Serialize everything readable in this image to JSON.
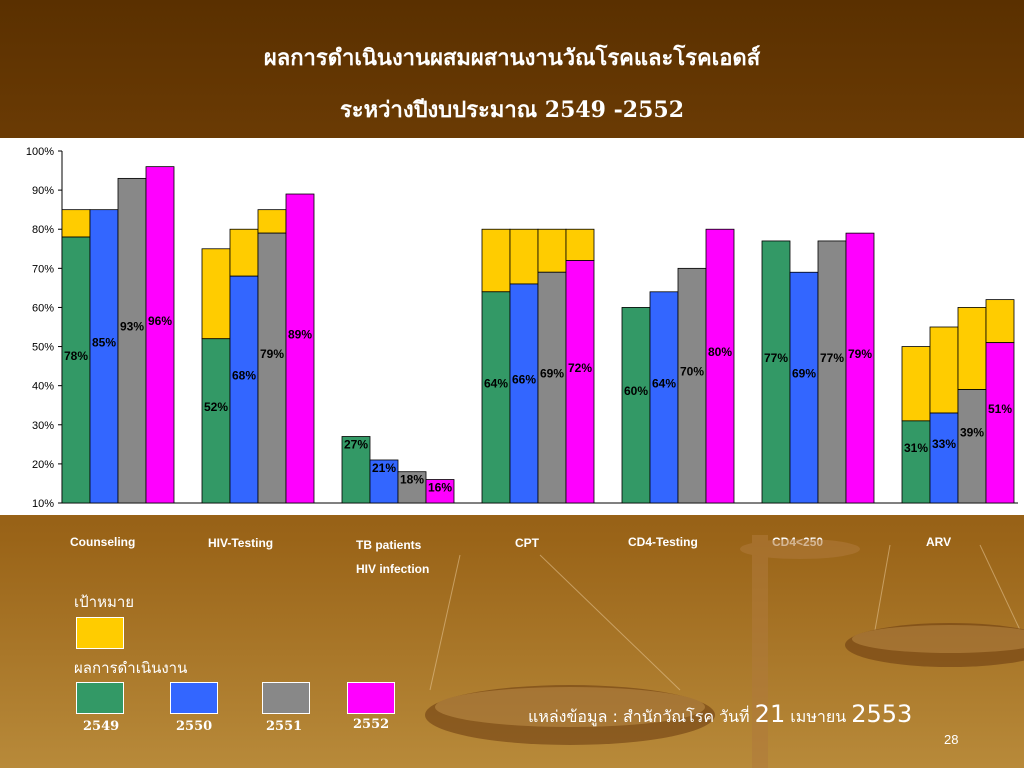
{
  "slide": {
    "title_line1": "ผลการดำเนินงานผสมผสานงานวัณโรคและโรคเอดส์",
    "title_line2": "ระหว่างปีงบประมาณ 2549 -2552",
    "source_prefix": "แหล่งข้อมูล : สำนักวัณโรค วันที่ ",
    "source_day": "21",
    "source_month": " เมษายน ",
    "source_year": "2553",
    "page_number": "28"
  },
  "legend": {
    "target_heading": "เป้าหมาย",
    "result_heading": "ผลการดำเนินงาน",
    "target_color": "#ffcc00",
    "years": [
      {
        "label": "2549",
        "color": "#339966"
      },
      {
        "label": "2550",
        "color": "#3366ff"
      },
      {
        "label": "2551",
        "color": "#888888"
      },
      {
        "label": "2552",
        "color": "#ff00ff"
      }
    ]
  },
  "chart_data": {
    "type": "bar",
    "stacked_target_overlay": true,
    "ylim": [
      10,
      100
    ],
    "yticks": [
      "10%",
      "20%",
      "30%",
      "40%",
      "50%",
      "60%",
      "70%",
      "80%",
      "90%",
      "100%"
    ],
    "categories": [
      {
        "label": "Counseling",
        "label2": ""
      },
      {
        "label": "HIV-Testing",
        "label2": ""
      },
      {
        "label": "TB patients",
        "label2": "HIV infection"
      },
      {
        "label": "CPT",
        "label2": ""
      },
      {
        "label": "CD4-Testing",
        "label2": ""
      },
      {
        "label": "CD4<250",
        "label2": ""
      },
      {
        "label": "ARV",
        "label2": ""
      }
    ],
    "series": [
      {
        "year": "2549",
        "color": "#339966",
        "values": [
          78,
          52,
          27,
          64,
          60,
          77,
          31
        ],
        "labels": [
          "78%",
          "52%",
          "27%",
          "64%",
          "60%",
          "77%",
          "31%"
        ]
      },
      {
        "year": "2550",
        "color": "#3366ff",
        "values": [
          85,
          68,
          21,
          66,
          64,
          69,
          33
        ],
        "labels": [
          "85%",
          "68%",
          "21%",
          "66%",
          "64%",
          "69%",
          "33%"
        ]
      },
      {
        "year": "2551",
        "color": "#888888",
        "values": [
          93,
          79,
          18,
          69,
          70,
          77,
          39
        ],
        "labels": [
          "93%",
          "79%",
          "18%",
          "69%",
          "70%",
          "77%",
          "39%"
        ]
      },
      {
        "year": "2552",
        "color": "#ff00ff",
        "values": [
          96,
          89,
          16,
          72,
          80,
          79,
          51
        ],
        "labels": [
          "96%",
          "89%",
          "16%",
          "72%",
          "80%",
          "79%",
          "51%"
        ]
      }
    ],
    "targets": [
      [
        85,
        75,
        null,
        80,
        null,
        null,
        50
      ],
      [
        85,
        80,
        null,
        80,
        null,
        null,
        55
      ],
      [
        null,
        85,
        null,
        80,
        null,
        null,
        60
      ],
      [
        null,
        null,
        null,
        80,
        null,
        null,
        62
      ]
    ]
  }
}
